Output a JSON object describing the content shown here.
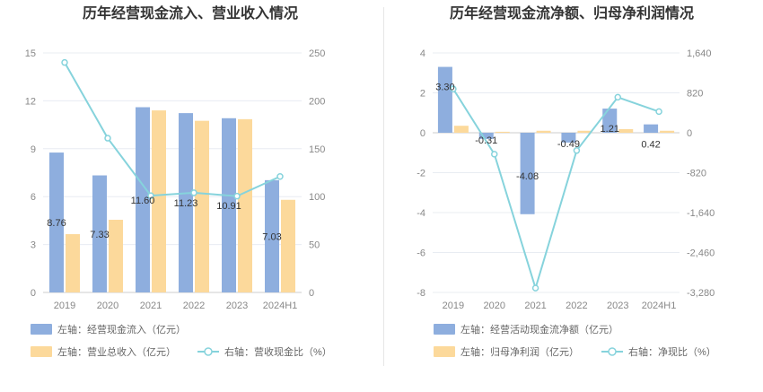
{
  "chart_data": [
    {
      "type": "bar",
      "title": "历年经营现金流入、营业收入情况",
      "categories": [
        "2019",
        "2020",
        "2021",
        "2022",
        "2023",
        "2024H1"
      ],
      "left_axis": {
        "ylim": [
          0,
          15
        ],
        "ticks": [
          0,
          3,
          6,
          9,
          12,
          15
        ]
      },
      "right_axis": {
        "ylim": [
          0,
          250
        ],
        "ticks": [
          0,
          50,
          100,
          150,
          200,
          250
        ]
      },
      "series": [
        {
          "name": "左轴：经营现金流入（亿元）",
          "axis": "left",
          "kind": "bar",
          "color": "#8eaede",
          "values": [
            8.76,
            7.33,
            11.6,
            11.23,
            10.91,
            7.03
          ],
          "labels": [
            "8.76",
            "7.33",
            "11.60",
            "11.23",
            "10.91",
            "7.03"
          ]
        },
        {
          "name": "左轴：营业总收入（亿元）",
          "axis": "left",
          "kind": "bar",
          "color": "#fcd99b",
          "values": [
            3.65,
            4.55,
            11.4,
            10.75,
            10.85,
            5.8
          ]
        },
        {
          "name": "右轴：营收现金比（%）",
          "axis": "right",
          "kind": "line",
          "color": "#86d3dc",
          "values": [
            240,
            161,
            101,
            104,
            100.5,
            121
          ]
        }
      ],
      "grid": true,
      "legend_position": "bottom"
    },
    {
      "type": "bar",
      "title": "历年经营现金流净额、归母净利润情况",
      "categories": [
        "2019",
        "2020",
        "2021",
        "2022",
        "2023",
        "2024H1"
      ],
      "left_axis": {
        "ylim": [
          -8,
          4
        ],
        "ticks": [
          -8,
          -6,
          -4,
          -2,
          0,
          2,
          4
        ]
      },
      "right_axis": {
        "ylim": [
          -3280,
          1640
        ],
        "ticks": [
          "-3,280",
          "-2,460",
          "-1,640",
          "-820",
          "0",
          "820",
          "1,640"
        ],
        "tick_values": [
          -3280,
          -2460,
          -1640,
          -820,
          0,
          820,
          1640
        ]
      },
      "series": [
        {
          "name": "左轴：经营活动现金流净额（亿元）",
          "axis": "left",
          "kind": "bar",
          "color": "#8eaede",
          "values": [
            3.3,
            -0.31,
            -4.08,
            -0.49,
            1.21,
            0.42
          ],
          "labels": [
            "3.30",
            "-0.31",
            "-4.08",
            "-0.49",
            "1.21",
            "0.42"
          ]
        },
        {
          "name": "左轴：归母净利润（亿元）",
          "axis": "left",
          "kind": "bar",
          "color": "#fcd99b",
          "values": [
            0.35,
            0.05,
            0.1,
            0.1,
            0.18,
            0.1
          ]
        },
        {
          "name": "右轴：净现比（%）",
          "axis": "right",
          "kind": "line",
          "color": "#86d3dc",
          "values": [
            900,
            -440,
            -3190,
            -365,
            730,
            435
          ]
        }
      ],
      "grid": true,
      "legend_position": "bottom"
    }
  ]
}
